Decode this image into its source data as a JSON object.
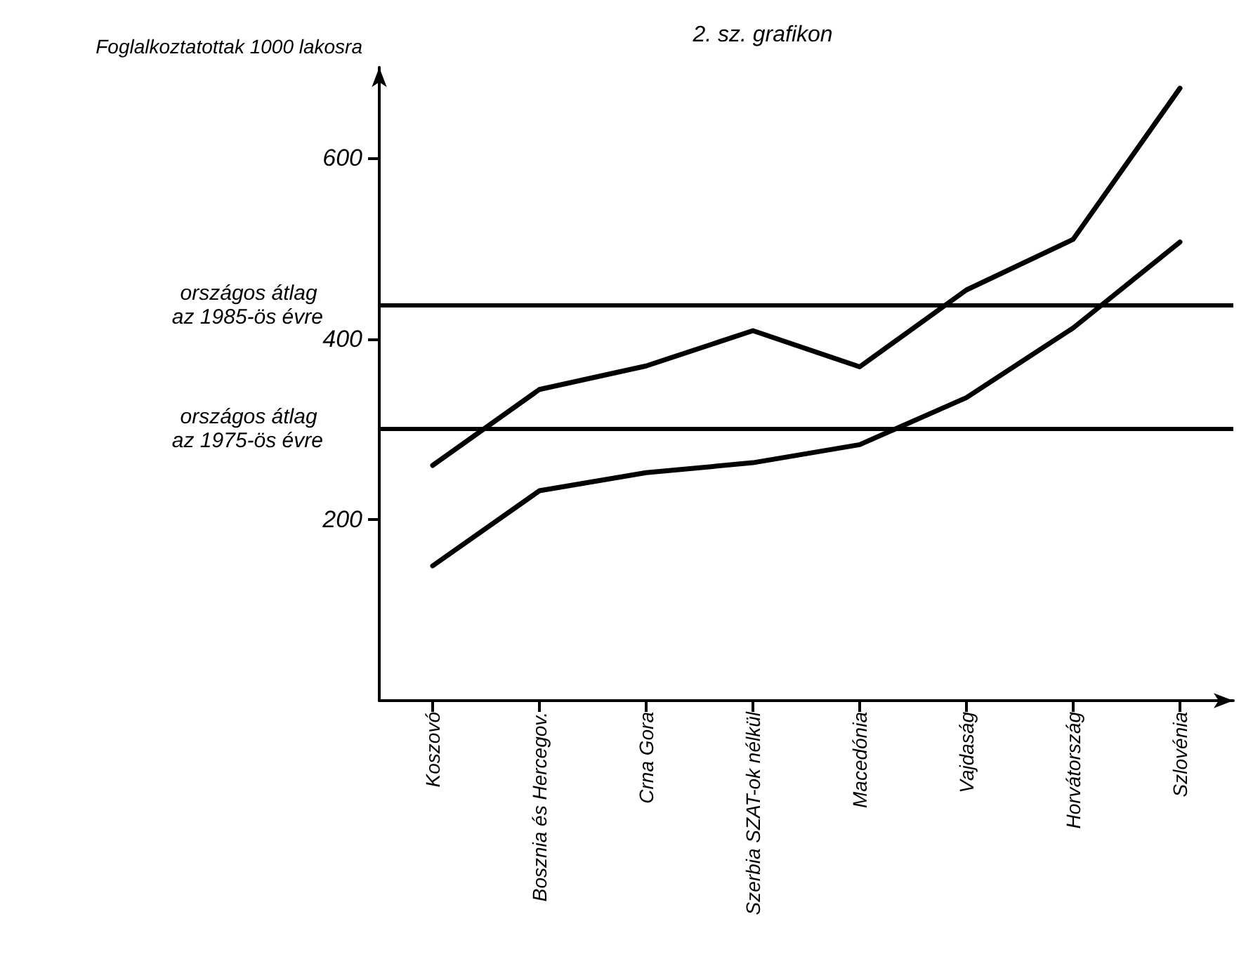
{
  "chart_data": {
    "type": "line",
    "title": "2. sz. grafikon",
    "ylabel": "Foglalkoztatottak 1000 lakosra",
    "categories": [
      "Koszovó",
      "Bosznia és Hercegov.",
      "Crna Gora",
      "Szerbia SZAT-ok nélkül",
      "Macedónia",
      "Vajdaság",
      "Horvátország",
      "Szlovénia"
    ],
    "series": [
      {
        "color": "#000000",
        "values": [
          260,
          344,
          370,
          409,
          369,
          454,
          510,
          677
        ]
      },
      {
        "color": "#000000",
        "values": [
          149,
          232,
          252,
          263,
          283,
          335,
          412,
          507
        ]
      }
    ],
    "ylim": [
      0,
      700
    ],
    "yticks": [
      200,
      400,
      600
    ],
    "grid": false,
    "marker": "none",
    "line_style": "solid",
    "ref_lines": [
      {
        "axis": "y",
        "value": 437,
        "label": "országos átlag az 1985-ös évre",
        "color": "#000000"
      },
      {
        "axis": "y",
        "value": 300,
        "label": "országos átlag az 1975-ös évre",
        "color": "#000000"
      }
    ]
  }
}
